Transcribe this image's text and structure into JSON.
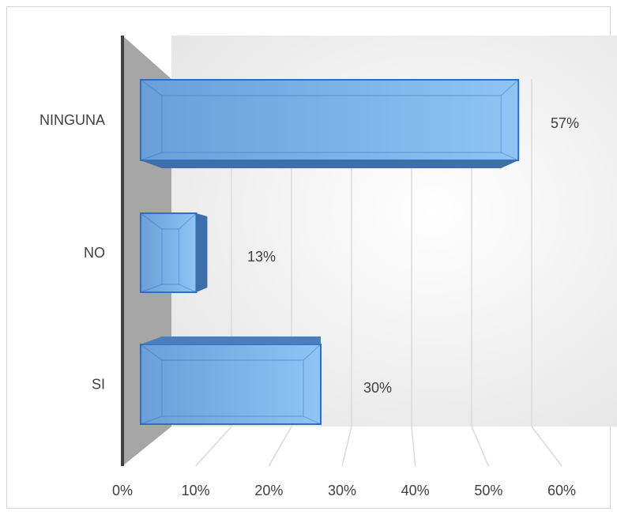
{
  "chart_data": {
    "type": "bar",
    "orientation": "horizontal",
    "style": "3d",
    "categories": [
      "NINGUNA",
      "NO",
      "SI"
    ],
    "values": [
      57,
      13,
      30
    ],
    "data_labels": [
      "57%",
      "13%",
      "30%"
    ],
    "xlim": [
      0,
      60
    ],
    "xticks": [
      0,
      10,
      20,
      30,
      40,
      50,
      60
    ],
    "xtick_labels": [
      "0%",
      "10%",
      "20%",
      "30%",
      "40%",
      "50%",
      "60%"
    ],
    "grid": true,
    "legend": "none",
    "colors": {
      "bar_front": "#6fa8e0",
      "bar_top": "#4a7fbf",
      "bar_side": "#3f6fa8",
      "bar_edge": "#2e6fc4",
      "back_wall": "#f4f4f4",
      "side_wall": "#a6a6a6",
      "axis_line": "#404040",
      "gridline": "#d9d9d9"
    }
  }
}
